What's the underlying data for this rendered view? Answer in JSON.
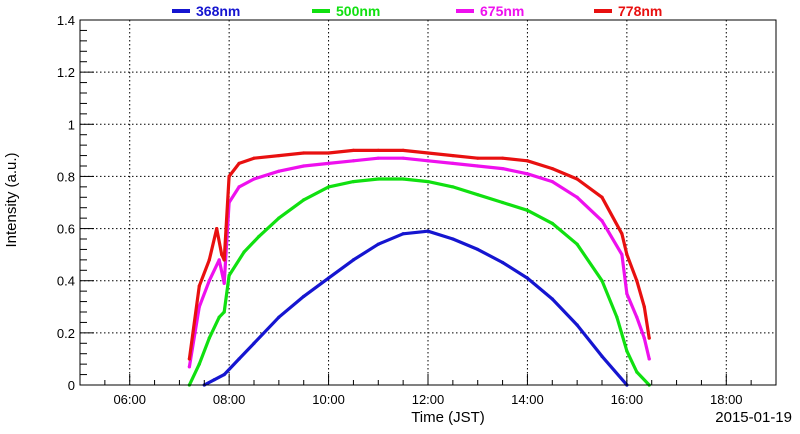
{
  "chart_data": {
    "type": "scatter",
    "title": "",
    "xlabel": "Time (JST)",
    "ylabel": "Intensity (a.u.)",
    "date_label": "2015-01-19",
    "x_unit": "hours JST",
    "xlim": [
      5.0,
      19.0
    ],
    "ylim": [
      0,
      1.4
    ],
    "x_ticks": [
      6,
      8,
      10,
      12,
      14,
      16,
      18
    ],
    "x_tick_labels": [
      "06:00",
      "08:00",
      "10:00",
      "12:00",
      "14:00",
      "16:00",
      "18:00"
    ],
    "y_ticks": [
      0,
      0.2,
      0.4,
      0.6,
      0.8,
      1,
      1.2,
      1.4
    ],
    "y_tick_labels": [
      "0",
      "0.2",
      "0.4",
      "0.6",
      "0.8",
      "1",
      "1.2",
      "1.4"
    ],
    "grid": true,
    "legend_position": "top",
    "series": [
      {
        "name": "368nm",
        "color": "#1515d0",
        "x": [
          7.5,
          7.7,
          7.9,
          8.2,
          8.5,
          9.0,
          9.5,
          10.0,
          10.5,
          11.0,
          11.5,
          12.0,
          12.5,
          13.0,
          13.5,
          14.0,
          14.5,
          15.0,
          15.5,
          16.0
        ],
        "y": [
          0.0,
          0.02,
          0.04,
          0.1,
          0.16,
          0.26,
          0.34,
          0.41,
          0.48,
          0.54,
          0.58,
          0.59,
          0.56,
          0.52,
          0.47,
          0.41,
          0.33,
          0.23,
          0.11,
          0.0
        ]
      },
      {
        "name": "500nm",
        "color": "#10e010",
        "x": [
          7.2,
          7.4,
          7.6,
          7.8,
          7.9,
          8.0,
          8.3,
          8.6,
          9.0,
          9.5,
          10.0,
          10.5,
          11.0,
          11.5,
          12.0,
          12.5,
          13.0,
          13.5,
          14.0,
          14.5,
          15.0,
          15.5,
          15.8,
          16.0,
          16.2,
          16.45
        ],
        "y": [
          0.0,
          0.08,
          0.18,
          0.26,
          0.28,
          0.42,
          0.51,
          0.57,
          0.64,
          0.71,
          0.76,
          0.78,
          0.79,
          0.79,
          0.78,
          0.76,
          0.73,
          0.7,
          0.67,
          0.62,
          0.54,
          0.4,
          0.26,
          0.13,
          0.05,
          0.0
        ]
      },
      {
        "name": "675nm",
        "color": "#ee10ee",
        "x": [
          7.2,
          7.4,
          7.6,
          7.8,
          7.9,
          8.0,
          8.2,
          8.5,
          9.0,
          9.5,
          10.0,
          10.5,
          11.0,
          11.5,
          12.0,
          12.5,
          13.0,
          13.5,
          14.0,
          14.5,
          15.0,
          15.5,
          15.9,
          16.0,
          16.2,
          16.35,
          16.45
        ],
        "y": [
          0.07,
          0.3,
          0.4,
          0.48,
          0.39,
          0.7,
          0.76,
          0.79,
          0.82,
          0.84,
          0.85,
          0.86,
          0.87,
          0.87,
          0.86,
          0.85,
          0.84,
          0.83,
          0.81,
          0.78,
          0.72,
          0.63,
          0.5,
          0.35,
          0.26,
          0.18,
          0.1
        ]
      },
      {
        "name": "778nm",
        "color": "#e81010",
        "x": [
          7.2,
          7.4,
          7.6,
          7.75,
          7.85,
          7.9,
          8.0,
          8.2,
          8.5,
          9.0,
          9.5,
          10.0,
          10.5,
          11.0,
          11.5,
          12.0,
          12.5,
          13.0,
          13.5,
          14.0,
          14.5,
          15.0,
          15.5,
          15.9,
          16.0,
          16.2,
          16.35,
          16.45
        ],
        "y": [
          0.1,
          0.38,
          0.48,
          0.6,
          0.5,
          0.48,
          0.8,
          0.85,
          0.87,
          0.88,
          0.89,
          0.89,
          0.9,
          0.9,
          0.9,
          0.89,
          0.88,
          0.87,
          0.87,
          0.86,
          0.83,
          0.79,
          0.72,
          0.58,
          0.5,
          0.4,
          0.3,
          0.18
        ]
      }
    ]
  }
}
